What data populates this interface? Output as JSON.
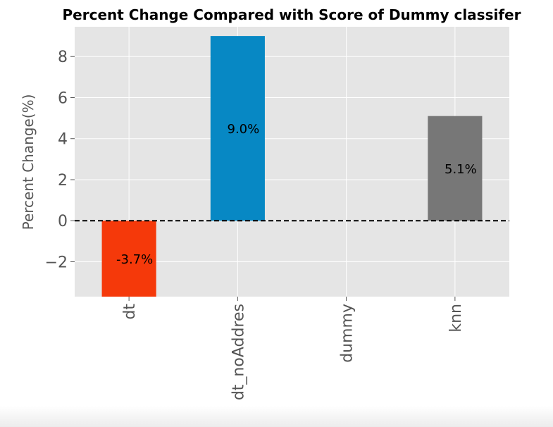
{
  "chart_data": {
    "type": "bar",
    "title": "Percent Change Compared with Score of Dummy classifer",
    "xlabel": "",
    "ylabel": "Percent Change(%)",
    "categories": [
      "dt",
      "dt_noAddres",
      "dummy",
      "knn"
    ],
    "values": [
      -3.7,
      9.0,
      0.0,
      5.1
    ],
    "data_labels": [
      "-3.7%",
      "9.0%",
      "",
      "5.1%"
    ],
    "colors": [
      "#f5390a",
      "#0788c4",
      "#e5e5e5",
      "#777777"
    ],
    "ylim": [
      -3.7,
      9.45
    ],
    "yticks": [
      -2,
      0,
      2,
      4,
      6,
      8
    ],
    "ytick_labels": [
      "−2",
      "0",
      "2",
      "4",
      "6",
      "8"
    ],
    "reference_line": {
      "y": 0,
      "style": "dashed",
      "color": "#000000"
    },
    "grid": true,
    "background": "#e5e5e5"
  }
}
